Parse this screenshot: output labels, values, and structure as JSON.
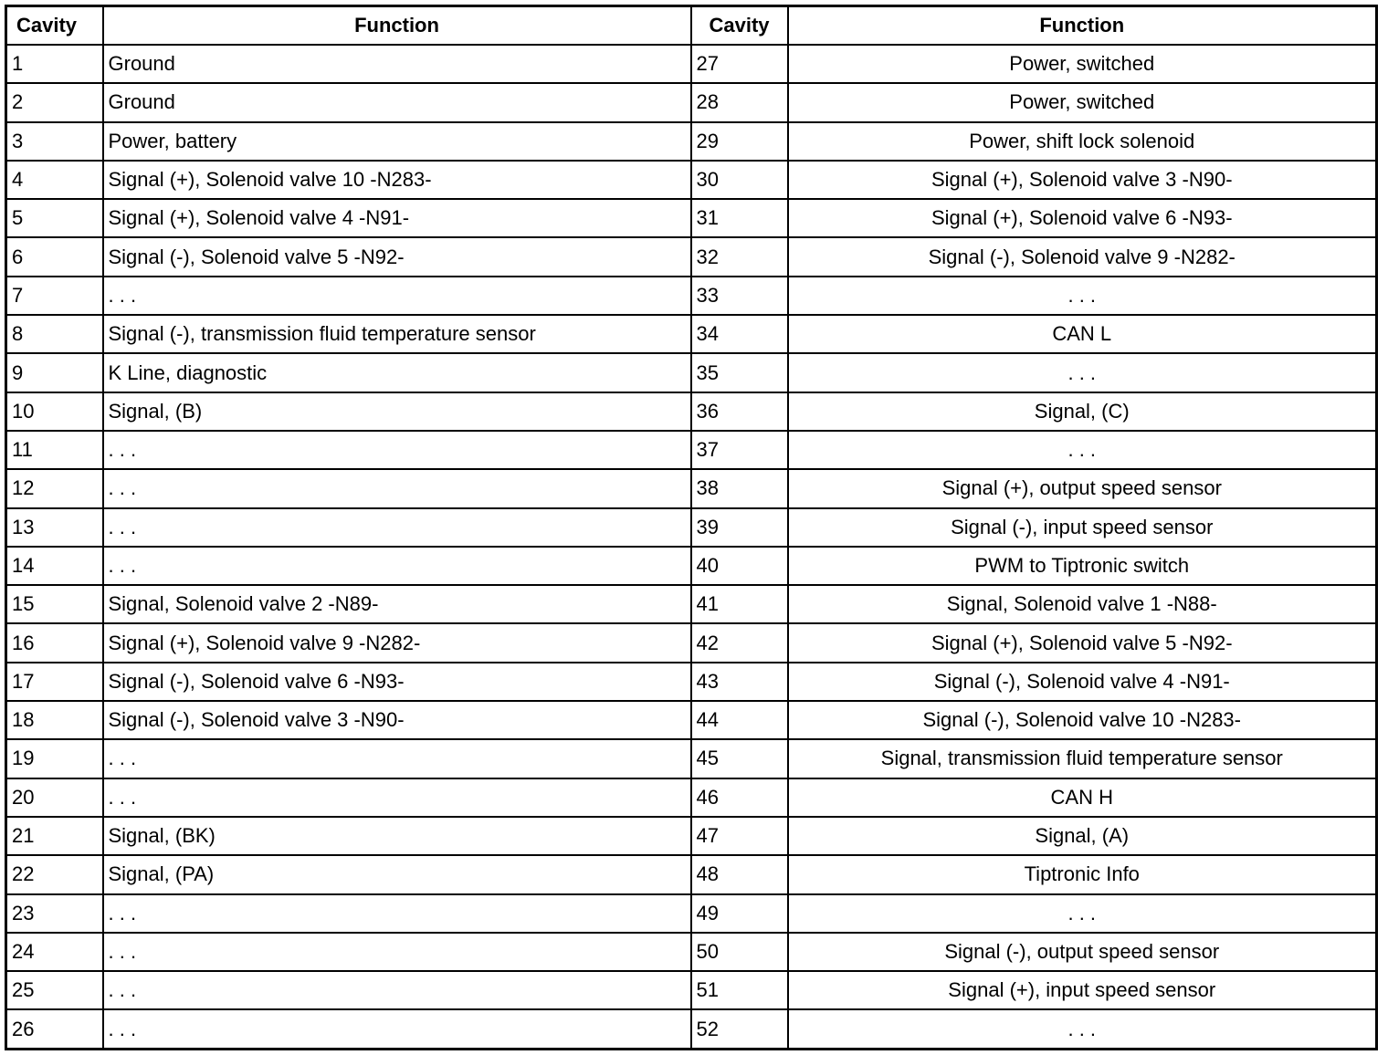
{
  "headers": [
    "Cavity",
    "Function",
    "Cavity",
    "Function"
  ],
  "rows": [
    [
      "1",
      "Ground",
      "27",
      "Power, switched"
    ],
    [
      "2",
      "Ground",
      "28",
      "Power, switched"
    ],
    [
      "3",
      "Power, battery",
      "29",
      "Power, shift lock solenoid"
    ],
    [
      "4",
      "Signal (+), Solenoid valve 10 -N283-",
      "30",
      "Signal (+), Solenoid valve 3 -N90-"
    ],
    [
      "5",
      "Signal (+), Solenoid valve 4 -N91-",
      "31",
      "Signal (+), Solenoid valve 6 -N93-"
    ],
    [
      "6",
      "Signal (-), Solenoid valve 5 -N92-",
      "32",
      "Signal (-), Solenoid valve 9 -N282-"
    ],
    [
      "7",
      ". . .",
      "33",
      ". . ."
    ],
    [
      "8",
      "Signal (-), transmission fluid temperature sensor",
      "34",
      "CAN L"
    ],
    [
      "9",
      "K Line, diagnostic",
      "35",
      ". . ."
    ],
    [
      "10",
      "Signal, (B)",
      "36",
      "Signal, (C)"
    ],
    [
      "11",
      ". . .",
      "37",
      ". . ."
    ],
    [
      "12",
      ". . .",
      "38",
      "Signal (+), output speed sensor"
    ],
    [
      "13",
      ". . .",
      "39",
      "Signal (-), input speed sensor"
    ],
    [
      "14",
      ". . .",
      "40",
      "PWM to Tiptronic switch"
    ],
    [
      "15",
      "Signal, Solenoid valve 2 -N89-",
      "41",
      "Signal, Solenoid valve 1 -N88-"
    ],
    [
      "16",
      "Signal (+), Solenoid valve 9 -N282-",
      "42",
      "Signal (+), Solenoid valve 5 -N92-"
    ],
    [
      "17",
      "Signal (-), Solenoid valve 6 -N93-",
      "43",
      "Signal (-), Solenoid valve 4 -N91-"
    ],
    [
      "18",
      "Signal (-), Solenoid valve 3 -N90-",
      "44",
      "Signal (-), Solenoid valve 10 -N283-"
    ],
    [
      "19",
      ". . .",
      "45",
      "Signal, transmission fluid temperature sensor"
    ],
    [
      "20",
      ". . .",
      "46",
      "CAN H"
    ],
    [
      "21",
      "Signal, (BK)",
      "47",
      "Signal, (A)"
    ],
    [
      "22",
      "Signal, (PA)",
      "48",
      "Tiptronic Info"
    ],
    [
      "23",
      ". . .",
      "49",
      ". . ."
    ],
    [
      "24",
      ". . .",
      "50",
      "Signal (-), output speed sensor"
    ],
    [
      "25",
      ". . .",
      "51",
      "Signal (+), input speed sensor"
    ],
    [
      "26",
      ". . .",
      "52",
      ". . ."
    ]
  ]
}
